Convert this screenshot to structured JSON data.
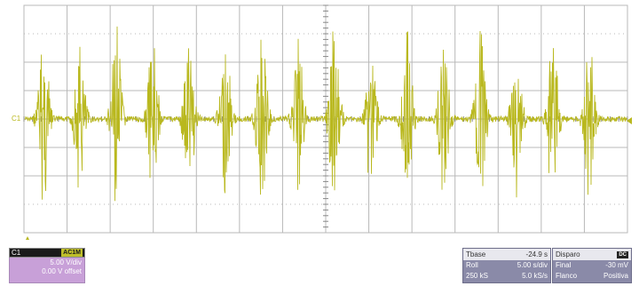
{
  "colors": {
    "trace": "#b9b81e",
    "grid": "#b8b8b8",
    "background": "#ffffff",
    "channel_panel": "#c8a0d8",
    "timebase_panel": "#8a8aa8"
  },
  "screen": {
    "channel_marker_left": "C1",
    "trigger_marker_icon": "trigger-level-arrow-icon",
    "bottom_marker_icon": "trigger-position-triangle-icon"
  },
  "channel": {
    "name": "C1",
    "coupling": "AC1M",
    "vdiv": "5.00 V/div",
    "offset": "0.00 V offset"
  },
  "timebase": {
    "label": "Tbase",
    "delay": "-24.9 s",
    "mode": "Roll",
    "tdiv": "5.00 s/div",
    "samples": "250 kS",
    "rate": "5.0 kS/s"
  },
  "trigger": {
    "label": "Disparo",
    "icon": "trigger-dc-icon",
    "icon_text": "DC",
    "row1_label": "Final",
    "row1_value": "-30 mV",
    "row2_label": "Flanco",
    "row2_value": "Positiva"
  }
}
